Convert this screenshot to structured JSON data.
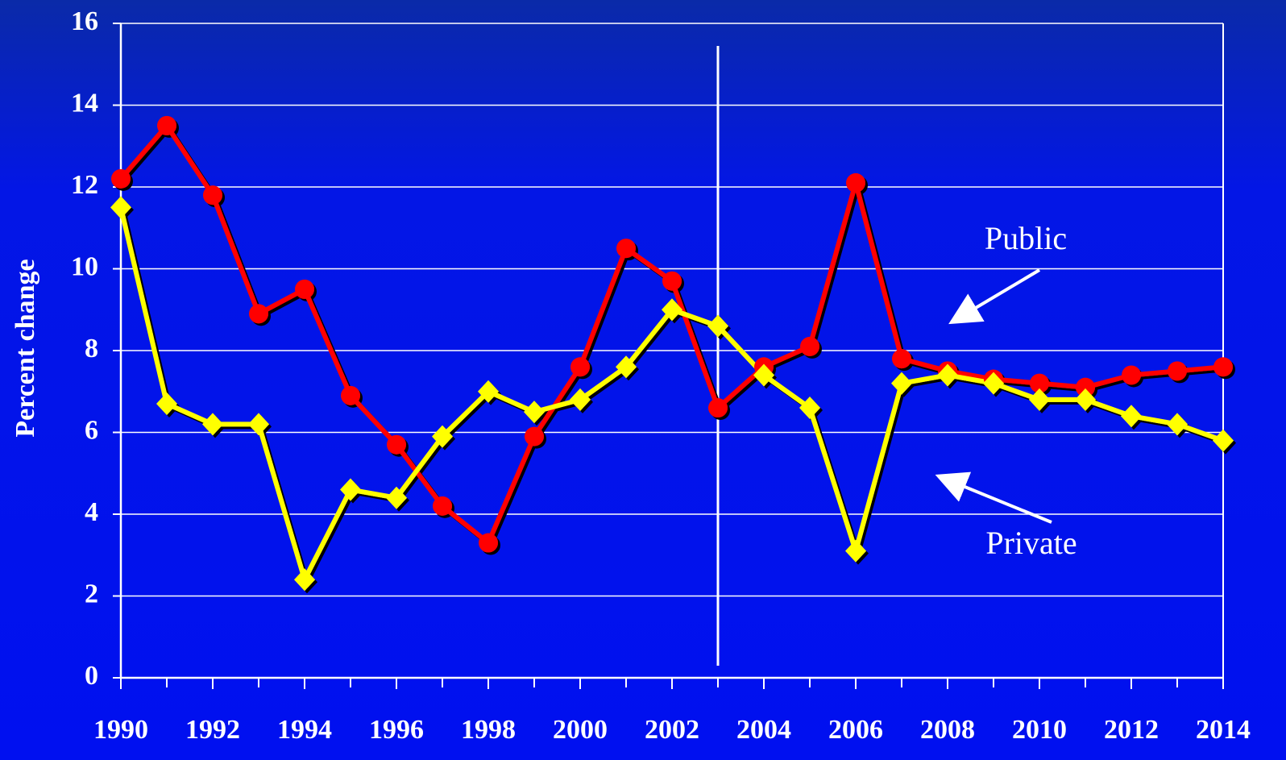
{
  "chart_data": {
    "type": "line",
    "y_label": "Percent change",
    "x": [
      1990,
      1991,
      1992,
      1993,
      1994,
      1995,
      1996,
      1997,
      1998,
      1999,
      2000,
      2001,
      2002,
      2003,
      2004,
      2005,
      2006,
      2007,
      2008,
      2009,
      2010,
      2011,
      2012,
      2013,
      2014
    ],
    "series": [
      {
        "name": "Public",
        "color": "#ff0000",
        "marker": "circle",
        "values": [
          12.2,
          13.5,
          11.8,
          8.9,
          9.5,
          6.9,
          5.7,
          4.2,
          3.3,
          5.9,
          7.6,
          10.5,
          9.7,
          6.6,
          7.6,
          8.1,
          12.1,
          7.8,
          7.5,
          7.3,
          7.2,
          7.1,
          7.4,
          7.5,
          7.6
        ]
      },
      {
        "name": "Private",
        "color": "#ffff00",
        "marker": "diamond",
        "values": [
          11.5,
          6.7,
          6.2,
          6.2,
          2.4,
          4.6,
          4.4,
          5.9,
          7.0,
          6.5,
          6.8,
          7.6,
          9.0,
          8.6,
          7.4,
          6.6,
          3.1,
          7.2,
          7.4,
          7.2,
          6.8,
          6.8,
          6.4,
          6.2,
          5.8
        ]
      }
    ],
    "annotations": [
      "Public",
      "Private"
    ],
    "vline_x": 2003,
    "xlim": [
      1990,
      2014
    ],
    "xticks": [
      1990,
      1992,
      1994,
      1996,
      1998,
      2000,
      2002,
      2004,
      2006,
      2008,
      2010,
      2012,
      2014
    ],
    "ylim": [
      0,
      16
    ],
    "yticks": [
      0,
      2,
      4,
      6,
      8,
      10,
      12,
      14,
      16
    ],
    "grid": true
  }
}
